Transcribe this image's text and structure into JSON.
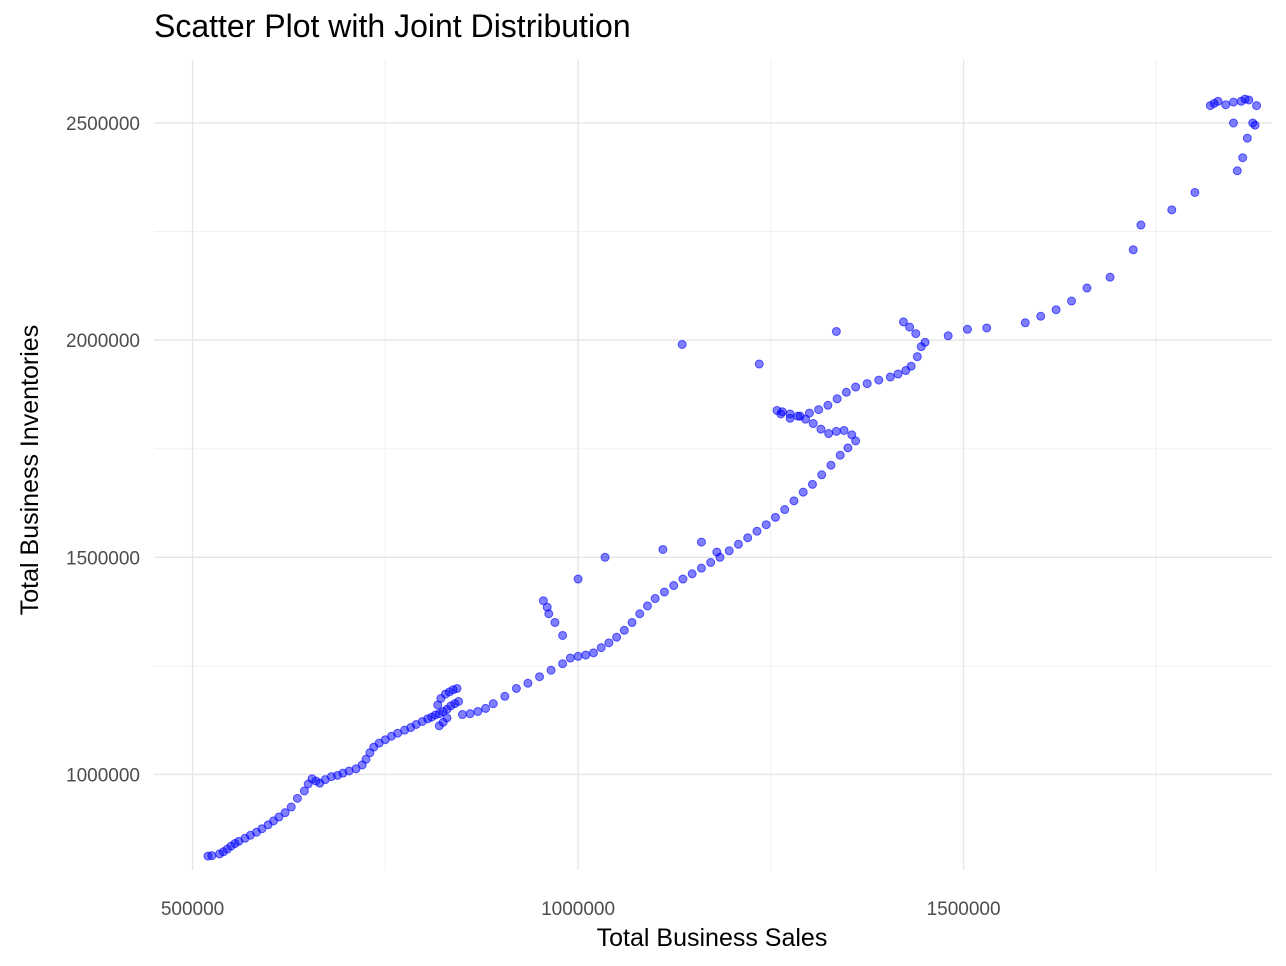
{
  "chart_data": {
    "type": "scatter",
    "title": "Scatter Plot with Joint Distribution",
    "xlabel": "Total Business Sales",
    "ylabel": "Total Business Inventories",
    "xlim": [
      450000,
      1900000
    ],
    "ylim": [
      780000,
      2645000
    ],
    "x_ticks": [
      500000,
      1000000,
      1500000
    ],
    "x_tick_labels": [
      "500000",
      "1000000",
      "1500000"
    ],
    "y_ticks": [
      1000000,
      1500000,
      2000000,
      2500000
    ],
    "y_tick_labels": [
      "1000000",
      "1500000",
      "2000000",
      "2500000"
    ],
    "grid": true,
    "legend": "none",
    "point_color": "#0000FF",
    "point_opacity": 0.5,
    "series": [
      {
        "x": [
          520000,
          525000,
          535000,
          540000,
          545000,
          550000,
          555000,
          560000,
          568000,
          575000,
          583000,
          590000,
          598000,
          605000,
          612000,
          620000,
          628000,
          636000,
          645000,
          650000,
          655000,
          660000,
          665000,
          672000,
          680000,
          688000,
          695000,
          703000,
          712000,
          720000,
          725000,
          730000,
          735000,
          742000,
          750000,
          758000,
          766000,
          775000,
          783000,
          790000,
          798000,
          805000,
          810000,
          815000,
          820000,
          825000,
          830000,
          835000,
          840000,
          845000,
          818000,
          822000,
          828000,
          833000,
          838000,
          843000,
          830000,
          825000,
          820000,
          850000,
          860000,
          870000,
          880000,
          890000,
          905000,
          920000,
          935000,
          950000,
          965000,
          980000,
          990000,
          1000000,
          1010000,
          1020000,
          1030000,
          1040000,
          1050000,
          1060000,
          1070000,
          1080000,
          1090000,
          1100000,
          1112000,
          1124000,
          1136000,
          1148000,
          1160000,
          1172000,
          1184000,
          1196000,
          1208000,
          1220000,
          1232000,
          1244000,
          1256000,
          1268000,
          1280000,
          1292000,
          1304000,
          1316000,
          1328000,
          1340000,
          1350000,
          1360000,
          1355000,
          1345000,
          1335000,
          1325000,
          1315000,
          1305000,
          1295000,
          1285000,
          1275000,
          1265000,
          1258000,
          1263000,
          1275000,
          1288000,
          1300000,
          1312000,
          1324000,
          1336000,
          1348000,
          1360000,
          1375000,
          1390000,
          1405000,
          1415000,
          1425000,
          1432000,
          1440000,
          1445000,
          1438000,
          1430000,
          1422000,
          1450000,
          1480000,
          1505000,
          1530000,
          1580000,
          1600000,
          1620000,
          1640000,
          1660000,
          1690000,
          1720000,
          1730000,
          1770000,
          1800000,
          1820000,
          1825000,
          1830000,
          1840000,
          1850000,
          1860000,
          1865000,
          1870000,
          1880000,
          1875000,
          1868000,
          1862000,
          1855000,
          1850000,
          1878000,
          960000,
          955000,
          962000,
          970000,
          980000,
          1000000,
          1035000,
          1110000,
          1135000,
          1160000,
          1180000,
          1235000,
          1335000
        ],
        "y": [
          812000,
          813000,
          817000,
          822000,
          828000,
          835000,
          841000,
          846000,
          853000,
          860000,
          867000,
          875000,
          884000,
          893000,
          902000,
          912000,
          925000,
          945000,
          962000,
          978000,
          990000,
          985000,
          980000,
          988000,
          995000,
          998000,
          1003000,
          1008000,
          1013000,
          1022000,
          1035000,
          1050000,
          1063000,
          1072000,
          1080000,
          1088000,
          1095000,
          1102000,
          1108000,
          1115000,
          1122000,
          1128000,
          1132000,
          1137000,
          1140000,
          1145000,
          1150000,
          1158000,
          1163000,
          1168000,
          1160000,
          1175000,
          1185000,
          1190000,
          1195000,
          1198000,
          1130000,
          1120000,
          1112000,
          1138000,
          1140000,
          1145000,
          1152000,
          1163000,
          1180000,
          1198000,
          1210000,
          1225000,
          1240000,
          1255000,
          1268000,
          1272000,
          1275000,
          1280000,
          1292000,
          1303000,
          1316000,
          1332000,
          1350000,
          1370000,
          1388000,
          1405000,
          1420000,
          1435000,
          1450000,
          1462000,
          1475000,
          1488000,
          1500000,
          1515000,
          1530000,
          1545000,
          1560000,
          1575000,
          1592000,
          1610000,
          1630000,
          1650000,
          1668000,
          1690000,
          1712000,
          1735000,
          1752000,
          1768000,
          1782000,
          1792000,
          1790000,
          1785000,
          1795000,
          1808000,
          1818000,
          1825000,
          1830000,
          1835000,
          1838000,
          1830000,
          1820000,
          1825000,
          1832000,
          1840000,
          1850000,
          1865000,
          1880000,
          1892000,
          1900000,
          1908000,
          1915000,
          1922000,
          1930000,
          1940000,
          1962000,
          1985000,
          2015000,
          2030000,
          2042000,
          1995000,
          2010000,
          2025000,
          2028000,
          2040000,
          2055000,
          2070000,
          2090000,
          2120000,
          2145000,
          2208000,
          2265000,
          2300000,
          2340000,
          2540000,
          2545000,
          2550000,
          2542000,
          2548000,
          2550000,
          2555000,
          2553000,
          2540000,
          2500000,
          2465000,
          2420000,
          2390000,
          2500000,
          2495000,
          1385000,
          1400000,
          1370000,
          1350000,
          1320000,
          1450000,
          1500000,
          1518000,
          1990000,
          1535000,
          1512000,
          1945000,
          2020000
        ]
      }
    ]
  }
}
